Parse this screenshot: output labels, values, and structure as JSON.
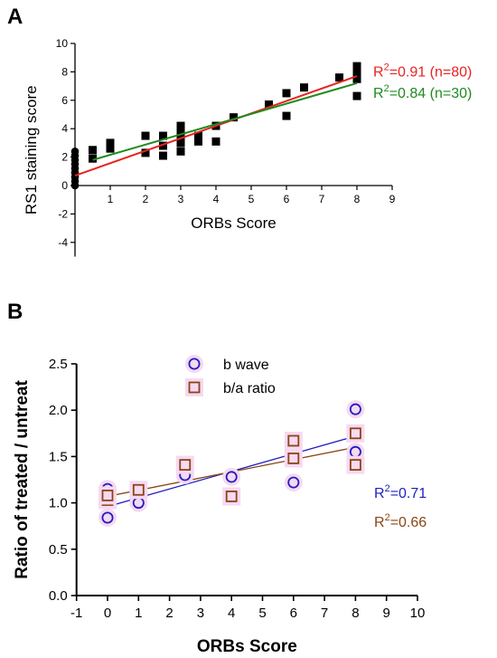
{
  "chart_data": [
    {
      "panel": "A",
      "type": "scatter",
      "xlabel": "ORBs Score",
      "ylabel": "RS1 staining score",
      "xlim": [
        0,
        9
      ],
      "ylim": [
        -5,
        10
      ],
      "xticks": [
        1,
        2,
        3,
        4,
        5,
        6,
        7,
        8,
        9
      ],
      "yticks": [
        -4,
        -2,
        0,
        2,
        4,
        6,
        8,
        10
      ],
      "colors": {
        "points": "#000000",
        "fit_red": "#e8231f",
        "fit_green": "#1e8a1e"
      },
      "series": [
        {
          "marker": "square",
          "points": [
            [
              0.5,
              1.9
            ],
            [
              0.5,
              2.5
            ],
            [
              1,
              2.6
            ],
            [
              1,
              3.0
            ],
            [
              2,
              2.3
            ],
            [
              2,
              3.5
            ],
            [
              2.5,
              2.1
            ],
            [
              2.5,
              2.8
            ],
            [
              2.5,
              3.5
            ],
            [
              3,
              2.4
            ],
            [
              3,
              3.0
            ],
            [
              3,
              3.5
            ],
            [
              3,
              3.9
            ],
            [
              3,
              4.2
            ],
            [
              3.5,
              3.1
            ],
            [
              3.5,
              3.5
            ],
            [
              4,
              3.1
            ],
            [
              4,
              4.2
            ],
            [
              4.5,
              4.8
            ],
            [
              5.5,
              5.7
            ],
            [
              6,
              4.9
            ],
            [
              6,
              6.5
            ],
            [
              6.5,
              6.9
            ],
            [
              7.5,
              7.6
            ],
            [
              8,
              6.3
            ],
            [
              8,
              7.5
            ],
            [
              8,
              8.0
            ],
            [
              8,
              8.4
            ]
          ]
        },
        {
          "marker": "circle",
          "points": [
            [
              0,
              0.0
            ],
            [
              0,
              0.3
            ],
            [
              0,
              0.6
            ],
            [
              0,
              0.9
            ],
            [
              0,
              1.2
            ],
            [
              0,
              1.5
            ],
            [
              0,
              1.8
            ],
            [
              0,
              2.1
            ],
            [
              0,
              2.4
            ]
          ]
        }
      ],
      "fits": [
        {
          "label_prefix": "R",
          "label_sup": "2",
          "label_rest": "=0.91 (n=80)",
          "color": "#e8231f",
          "x": [
            0,
            8
          ],
          "y": [
            0.7,
            7.7
          ]
        },
        {
          "label_prefix": "R",
          "label_sup": "2",
          "label_rest": "=0.84 (n=30)",
          "color": "#1e8a1e",
          "x": [
            0.5,
            8
          ],
          "y": [
            1.8,
            7.2
          ]
        }
      ]
    },
    {
      "panel": "B",
      "type": "scatter",
      "xlabel": "ORBs Score",
      "ylabel": "Ratio of treated / untreat",
      "xlim": [
        -1,
        10
      ],
      "ylim": [
        0,
        2.5
      ],
      "xticks": [
        -1,
        0,
        1,
        2,
        3,
        4,
        5,
        6,
        7,
        8,
        9,
        10
      ],
      "yticks": [
        "0.0",
        "0.5",
        "1.0",
        "1.5",
        "2.0",
        "2.5"
      ],
      "legend_position": "top-center",
      "series": [
        {
          "name": "b wave",
          "marker": "open-circle",
          "color": "#1f1fbf",
          "points": [
            [
              0,
              0.84
            ],
            [
              0,
              1.15
            ],
            [
              1,
              1.0
            ],
            [
              2.5,
              1.3
            ],
            [
              4,
              1.28
            ],
            [
              6,
              1.22
            ],
            [
              6,
              1.62
            ],
            [
              8,
              1.55
            ],
            [
              8,
              2.01
            ]
          ]
        },
        {
          "name": "b/a ratio",
          "marker": "open-square",
          "color": "#8b4513",
          "points": [
            [
              0,
              1.03
            ],
            [
              0,
              1.08
            ],
            [
              1,
              1.14
            ],
            [
              2.5,
              1.41
            ],
            [
              4,
              1.07
            ],
            [
              6,
              1.48
            ],
            [
              6,
              1.67
            ],
            [
              8,
              1.41
            ],
            [
              8,
              1.75
            ]
          ]
        }
      ],
      "fits": [
        {
          "label_prefix": "R",
          "label_sup": "2",
          "label_rest": "=0.71",
          "color": "#1f1fbf",
          "x": [
            0,
            8
          ],
          "y": [
            0.96,
            1.72
          ]
        },
        {
          "label_prefix": "R",
          "label_sup": "2",
          "label_rest": "=0.66",
          "color": "#8b4513",
          "x": [
            0,
            8
          ],
          "y": [
            1.07,
            1.6
          ]
        }
      ]
    }
  ]
}
